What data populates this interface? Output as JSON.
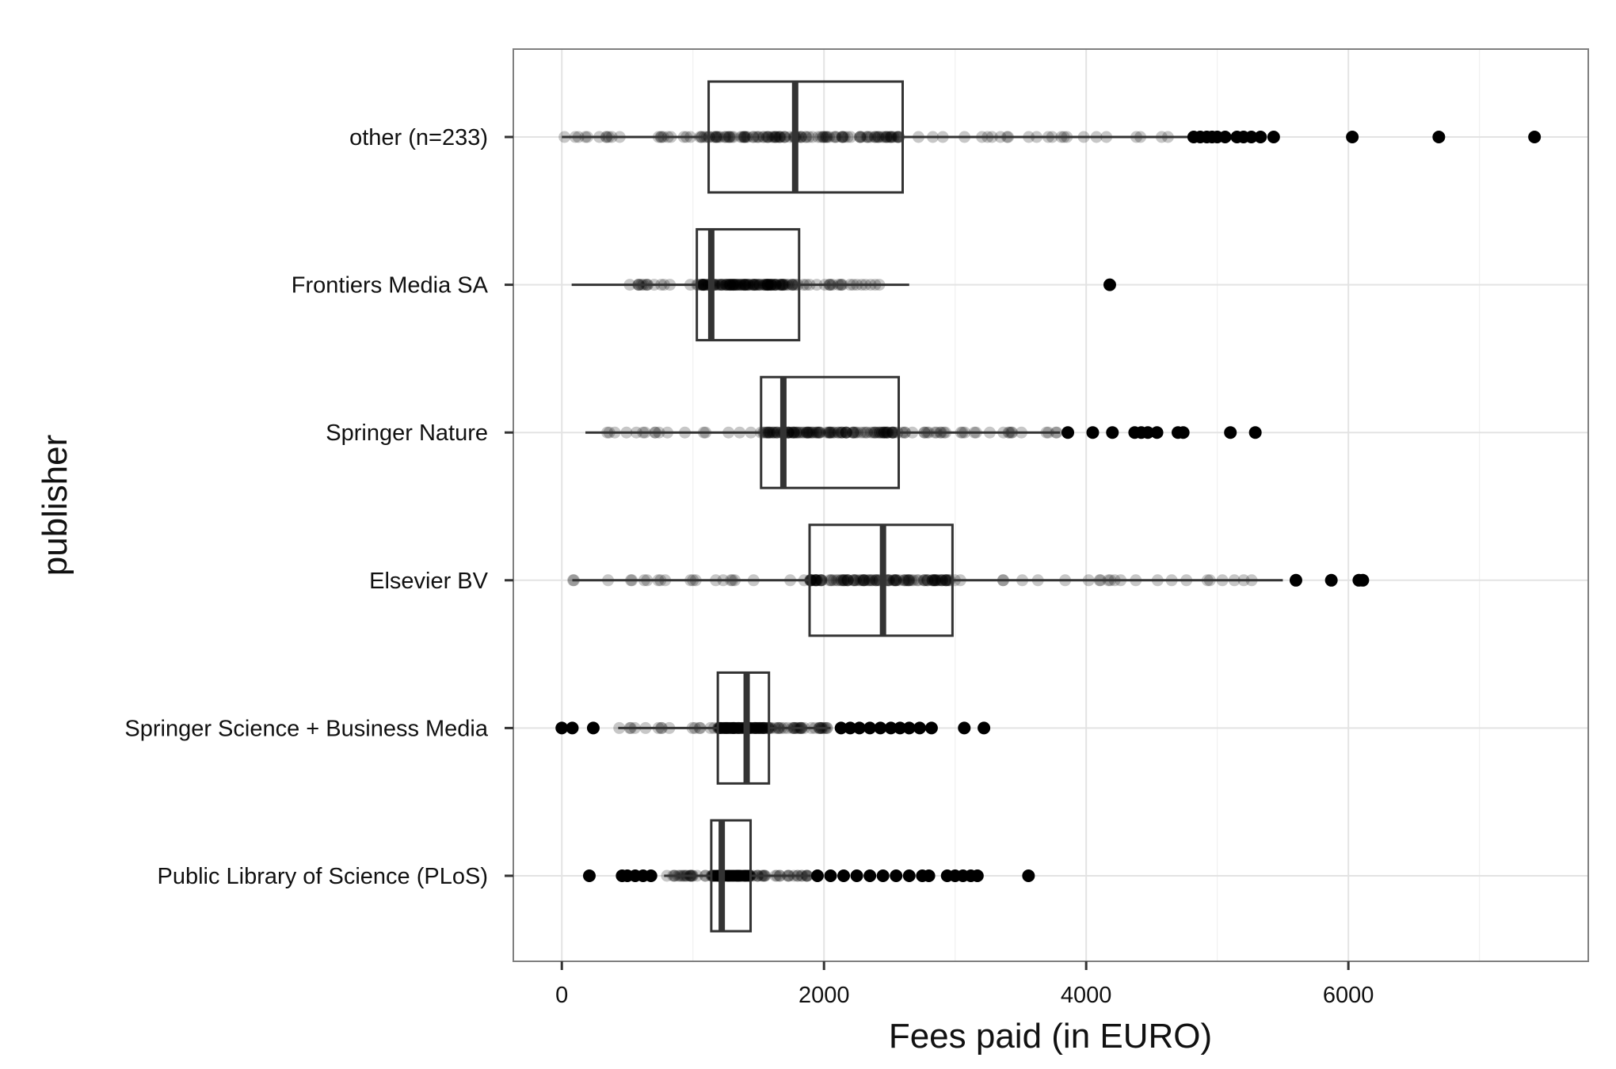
{
  "chart_data": {
    "type": "boxplot",
    "title": "",
    "xlabel": "Fees paid (in EURO)",
    "ylabel": "publisher",
    "xlim": [
      -370,
      7830
    ],
    "xticks": [
      0,
      2000,
      4000,
      6000
    ],
    "xtick_labels": [
      "0",
      "2000",
      "4000",
      "6000"
    ],
    "grid": true,
    "orientation": "horizontal",
    "categories": [
      "other (n=233)",
      "Frontiers Media SA",
      "Springer Nature",
      "Elsevier BV",
      "Springer Science + Business Media",
      "Public Library of Science (PLoS)"
    ],
    "boxes": [
      {
        "category": "other (n=233)",
        "whisker_low": 0,
        "q1": 1120,
        "median": 1780,
        "q3": 2600,
        "whisker_high": 4800,
        "outliers": [
          4820,
          4870,
          4920,
          4960,
          5000,
          5060,
          5150,
          5200,
          5260,
          5330,
          5430,
          6030,
          6690,
          7420
        ]
      },
      {
        "category": "Frontiers Media SA",
        "whisker_low": 75,
        "q1": 1030,
        "median": 1140,
        "q3": 1810,
        "whisker_high": 2650,
        "outliers": [
          4180
        ]
      },
      {
        "category": "Springer Nature",
        "whisker_low": 180,
        "q1": 1520,
        "median": 1690,
        "q3": 2570,
        "whisker_high": 3800,
        "outliers": [
          3860,
          4050,
          4200,
          4370,
          4420,
          4470,
          4540,
          4700,
          4740,
          5100,
          5290
        ]
      },
      {
        "category": "Elsevier BV",
        "whisker_low": 80,
        "q1": 1890,
        "median": 2450,
        "q3": 2980,
        "whisker_high": 5500,
        "outliers": [
          5600,
          5870,
          6080,
          6110
        ]
      },
      {
        "category": "Springer Science + Business Media",
        "whisker_low": 430,
        "q1": 1190,
        "median": 1410,
        "q3": 1580,
        "whisker_high": 2050,
        "outliers": [
          0,
          80,
          240,
          2130,
          2200,
          2270,
          2350,
          2430,
          2510,
          2580,
          2650,
          2730,
          2820,
          3070,
          3220
        ]
      },
      {
        "category": "Public Library of Science (PLoS)",
        "whisker_low": 780,
        "q1": 1140,
        "median": 1220,
        "q3": 1440,
        "whisker_high": 1900,
        "outliers": [
          210,
          460,
          500,
          560,
          620,
          680,
          1950,
          2050,
          2150,
          2250,
          2350,
          2450,
          2550,
          2650,
          2750,
          2800,
          2940,
          3000,
          3060,
          3120,
          3170,
          3560
        ]
      }
    ]
  }
}
